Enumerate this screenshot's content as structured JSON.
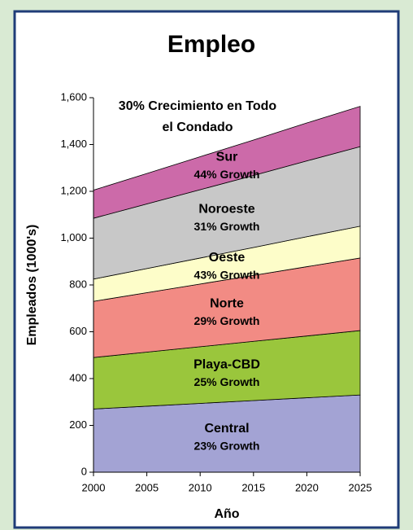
{
  "chart_data": {
    "type": "stacked_area",
    "title": "Empleo",
    "annotation": [
      "30% Crecimiento en Todo",
      "el Condado"
    ],
    "x_label": "Año",
    "y_label": "Empleados (1000's)",
    "x": [
      2000,
      2005,
      2010,
      2015,
      2020,
      2025
    ],
    "xlim": [
      2000,
      2025
    ],
    "xticks": [
      2000,
      2005,
      2010,
      2015,
      2020,
      2025
    ],
    "ylim": [
      0,
      1600
    ],
    "yticks": [
      0,
      200,
      400,
      600,
      800,
      {
        "value": 1000,
        "label": "1,000"
      },
      {
        "value": 1200,
        "label": "1,200"
      },
      {
        "value": 1400,
        "label": "1,400"
      },
      {
        "value": 1600,
        "label": "1,600"
      }
    ],
    "series": [
      {
        "name": "Central",
        "growth_label": "23% Growth",
        "color": "#a3a3d4",
        "values": [
          270,
          282,
          294,
          306,
          318,
          330
        ]
      },
      {
        "name": "Playa-CBD",
        "growth_label": "25% Growth",
        "color": "#9ac63c",
        "values": [
          220,
          231,
          242,
          253,
          264,
          275
        ]
      },
      {
        "name": "Norte",
        "growth_label": "29% Growth",
        "color": "#f28b84",
        "values": [
          240,
          254,
          268,
          282,
          296,
          310
        ]
      },
      {
        "name": "Oeste",
        "growth_label": "43% Growth",
        "color": "#fdfdc9",
        "values": [
          95,
          103,
          111,
          119,
          128,
          136
        ]
      },
      {
        "name": "Noroeste",
        "growth_label": "31% Growth",
        "color": "#c8c8c8",
        "values": [
          260,
          276,
          292,
          308,
          324,
          340
        ]
      },
      {
        "name": "Sur",
        "growth_label": "44% Growth",
        "color": "#cc6aa9",
        "values": [
          120,
          130,
          141,
          151,
          162,
          172
        ]
      }
    ]
  }
}
